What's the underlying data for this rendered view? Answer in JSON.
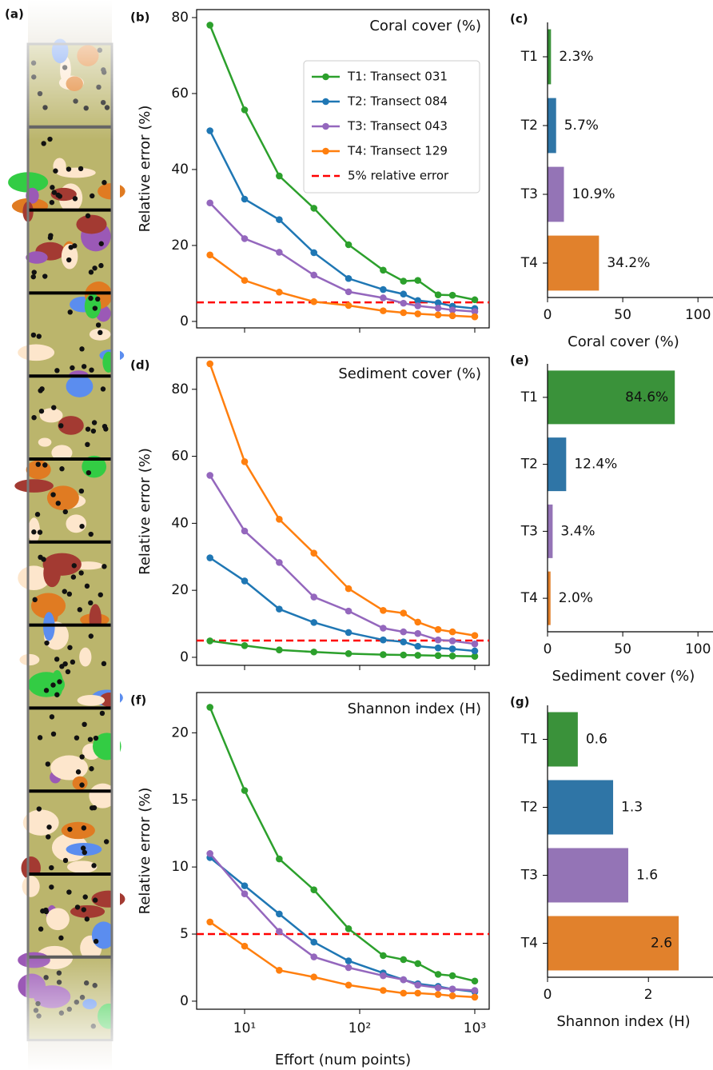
{
  "panel_a_label": "(a)",
  "chart_data": [
    {
      "type": "line",
      "panel_label": "(b)",
      "title": "Coral cover (%)",
      "y_label": "Relative error (%)",
      "x": [
        5,
        10,
        20,
        40,
        80,
        160,
        240,
        320,
        480,
        640,
        1000
      ],
      "log_x": true,
      "xlim": [
        3.83,
        1334
      ],
      "xticks": [
        10,
        100,
        1000
      ],
      "show_xtick_labels": false,
      "ylim": [
        -1.7,
        82.1
      ],
      "yticks": [
        0,
        20,
        40,
        60,
        80
      ],
      "legend": "upper right",
      "hline": {
        "value": 5,
        "label": "5% relative error",
        "color": "#ff0000"
      },
      "series": [
        {
          "name": "T1: Transect 031",
          "color": "#2ca02c",
          "values": [
            78,
            55.7,
            38.3,
            29.8,
            20.2,
            13.5,
            10.6,
            10.8,
            7.0,
            6.9,
            5.7
          ]
        },
        {
          "name": "T2: Transect 084",
          "color": "#1f77b4",
          "values": [
            50.2,
            32.2,
            26.8,
            18.1,
            11.3,
            8.4,
            7.2,
            5.5,
            4.9,
            4.0,
            3.4
          ]
        },
        {
          "name": "T3: Transect 043",
          "color": "#9467bd",
          "values": [
            31.2,
            21.8,
            18.2,
            12.2,
            7.8,
            6.2,
            4.8,
            4.1,
            3.5,
            3.0,
            2.6
          ]
        },
        {
          "name": "T4: Transect 129",
          "color": "#ff7f0e",
          "values": [
            17.5,
            10.8,
            7.7,
            5.2,
            4.2,
            2.8,
            2.3,
            2.0,
            1.7,
            1.5,
            1.2
          ]
        }
      ]
    },
    {
      "type": "barh",
      "panel_label": "(c)",
      "x_label": "Coral cover (%)",
      "categories": [
        "T1",
        "T2",
        "T3",
        "T4"
      ],
      "values": [
        2.3,
        5.7,
        10.9,
        34.2
      ],
      "value_labels": [
        "2.3%",
        "5.7%",
        "10.9%",
        "34.2%"
      ],
      "colors": [
        "#3a923a",
        "#2f75a6",
        "#9474b6",
        "#e1812c"
      ],
      "xlim": [
        0,
        110
      ],
      "xticks": [
        0,
        50,
        100
      ]
    },
    {
      "type": "line",
      "panel_label": "(d)",
      "title": "Sediment cover (%)",
      "y_label": "Relative error (%)",
      "x": [
        5,
        10,
        20,
        40,
        80,
        160,
        240,
        320,
        480,
        640,
        1000
      ],
      "log_x": true,
      "xlim": [
        3.83,
        1334
      ],
      "xticks": [
        10,
        100,
        1000
      ],
      "show_xtick_labels": false,
      "ylim": [
        -2.4,
        89.5
      ],
      "yticks": [
        0,
        20,
        40,
        60,
        80
      ],
      "hline": {
        "value": 5,
        "color": "#ff0000"
      },
      "series": [
        {
          "name": "T1: Transect 031",
          "color": "#2ca02c",
          "values": [
            4.9,
            3.5,
            2.2,
            1.6,
            1.1,
            0.8,
            0.7,
            0.6,
            0.5,
            0.4,
            0.3
          ]
        },
        {
          "name": "T2: Transect 084",
          "color": "#1f77b4",
          "values": [
            29.7,
            22.8,
            14.4,
            10.4,
            7.4,
            5.2,
            4.6,
            3.3,
            2.8,
            2.5,
            1.9
          ]
        },
        {
          "name": "T3: Transect 043",
          "color": "#9467bd",
          "values": [
            54.3,
            37.7,
            28.3,
            18.0,
            13.8,
            8.7,
            7.6,
            7.1,
            5.2,
            4.9,
            4.0
          ]
        },
        {
          "name": "T4: Transect 129",
          "color": "#ff7f0e",
          "values": [
            87.6,
            58.4,
            41.2,
            31.1,
            20.5,
            14.0,
            13.2,
            10.5,
            8.3,
            7.6,
            6.5
          ]
        }
      ]
    },
    {
      "type": "barh",
      "panel_label": "(e)",
      "x_label": "Sediment cover (%)",
      "categories": [
        "T1",
        "T2",
        "T3",
        "T4"
      ],
      "values": [
        84.6,
        12.4,
        3.4,
        2.0
      ],
      "value_labels": [
        "84.6%",
        "12.4%",
        "3.4%",
        "2.0%"
      ],
      "colors": [
        "#3a923a",
        "#2f75a6",
        "#9474b6",
        "#e1812c"
      ],
      "xlim": [
        0,
        110
      ],
      "xticks": [
        0,
        50,
        100
      ]
    },
    {
      "type": "line",
      "panel_label": "(f)",
      "title": "Shannon index (H)",
      "y_label": "Relative error (%)",
      "x_label": "Effort (num points)",
      "x": [
        5,
        10,
        20,
        40,
        80,
        160,
        240,
        320,
        480,
        640,
        1000
      ],
      "log_x": true,
      "xlim": [
        3.83,
        1334
      ],
      "xticks": [
        {
          "value": 10,
          "label": "10¹"
        },
        {
          "value": 100,
          "label": "10²"
        },
        {
          "value": 1000,
          "label": "10³"
        }
      ],
      "show_xtick_labels": true,
      "ylim": [
        -0.6,
        23.0
      ],
      "yticks": [
        0,
        5,
        10,
        15,
        20
      ],
      "hline": {
        "value": 5,
        "color": "#ff0000"
      },
      "series": [
        {
          "name": "T1: Transect 031",
          "color": "#2ca02c",
          "values": [
            21.9,
            15.7,
            10.6,
            8.3,
            5.4,
            3.4,
            3.1,
            2.8,
            2.0,
            1.9,
            1.5
          ]
        },
        {
          "name": "T2: Transect 084",
          "color": "#1f77b4",
          "values": [
            10.7,
            8.6,
            6.5,
            4.4,
            3.0,
            2.1,
            1.6,
            1.3,
            1.1,
            0.9,
            0.7
          ]
        },
        {
          "name": "T3: Transect 043",
          "color": "#9467bd",
          "values": [
            11.0,
            8.0,
            5.2,
            3.3,
            2.5,
            1.9,
            1.6,
            1.2,
            1.0,
            0.9,
            0.8
          ]
        },
        {
          "name": "T4: Transect 129",
          "color": "#ff7f0e",
          "values": [
            5.9,
            4.1,
            2.3,
            1.8,
            1.2,
            0.8,
            0.6,
            0.6,
            0.5,
            0.4,
            0.3
          ]
        }
      ]
    },
    {
      "type": "barh",
      "panel_label": "(g)",
      "x_label": "Shannon index (H)",
      "categories": [
        "T1",
        "T2",
        "T3",
        "T4"
      ],
      "values": [
        0.6,
        1.3,
        1.6,
        2.6
      ],
      "colors": [
        "#3a923a",
        "#2f75a6",
        "#9474b6",
        "#e1812c"
      ],
      "xlim": [
        0,
        3.28
      ],
      "xticks": [
        0,
        2
      ]
    }
  ]
}
